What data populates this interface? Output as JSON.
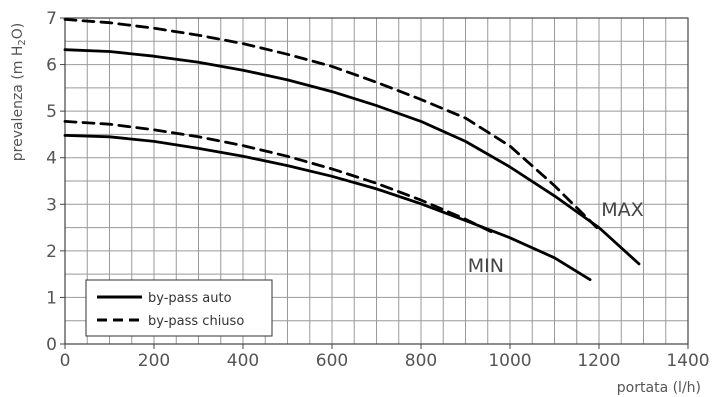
{
  "chart_data": {
    "type": "line",
    "xlabel": "portata (l/h)",
    "ylabel_main": "prevalenza (m H",
    "ylabel_sub": "2",
    "ylabel_end": "O)",
    "xlim": [
      0,
      1400
    ],
    "ylim": [
      0,
      7
    ],
    "x_ticks": [
      0,
      200,
      400,
      600,
      800,
      1000,
      1200,
      1400
    ],
    "y_ticks": [
      0,
      1,
      2,
      3,
      4,
      5,
      6,
      7
    ],
    "x_tick_labels": [
      "0",
      "200",
      "400",
      "600",
      "800",
      "1000",
      "1200",
      "1400"
    ],
    "y_tick_labels": [
      "0",
      "1",
      "2",
      "3",
      "4",
      "5",
      "6",
      "7"
    ],
    "grid": true,
    "legend_position": "bottom-left",
    "legend": [
      {
        "label": "by-pass auto",
        "style": "solid"
      },
      {
        "label": "by-pass chiuso",
        "style": "dashed"
      }
    ],
    "annotations": [
      {
        "text": "MAX",
        "x": 1205,
        "y": 2.75
      },
      {
        "text": "MIN",
        "x": 905,
        "y": 1.55
      }
    ],
    "series": [
      {
        "style": "solid",
        "x": [
          0,
          100,
          200,
          300,
          400,
          500,
          600,
          700,
          800,
          900,
          1000,
          1100,
          1200,
          1290
        ],
        "y": [
          6.32,
          6.28,
          6.18,
          6.05,
          5.88,
          5.67,
          5.42,
          5.12,
          4.78,
          4.35,
          3.8,
          3.18,
          2.5,
          1.72
        ]
      },
      {
        "style": "dashed",
        "x": [
          0,
          100,
          200,
          300,
          400,
          500,
          600,
          700,
          800,
          900,
          1000,
          1100,
          1195
        ],
        "y": [
          6.97,
          6.9,
          6.78,
          6.63,
          6.45,
          6.22,
          5.96,
          5.62,
          5.25,
          4.85,
          4.25,
          3.4,
          2.5
        ]
      },
      {
        "style": "solid",
        "x": [
          0,
          100,
          200,
          300,
          400,
          500,
          600,
          700,
          800,
          900,
          1000,
          1100,
          1180
        ],
        "y": [
          4.48,
          4.45,
          4.35,
          4.2,
          4.03,
          3.83,
          3.6,
          3.33,
          3.01,
          2.65,
          2.28,
          1.85,
          1.38
        ]
      },
      {
        "style": "dashed",
        "x": [
          0,
          100,
          200,
          300,
          400,
          500,
          600,
          700,
          800,
          900,
          960
        ],
        "y": [
          4.78,
          4.72,
          4.6,
          4.45,
          4.26,
          4.03,
          3.76,
          3.45,
          3.09,
          2.68,
          2.4
        ]
      }
    ]
  }
}
